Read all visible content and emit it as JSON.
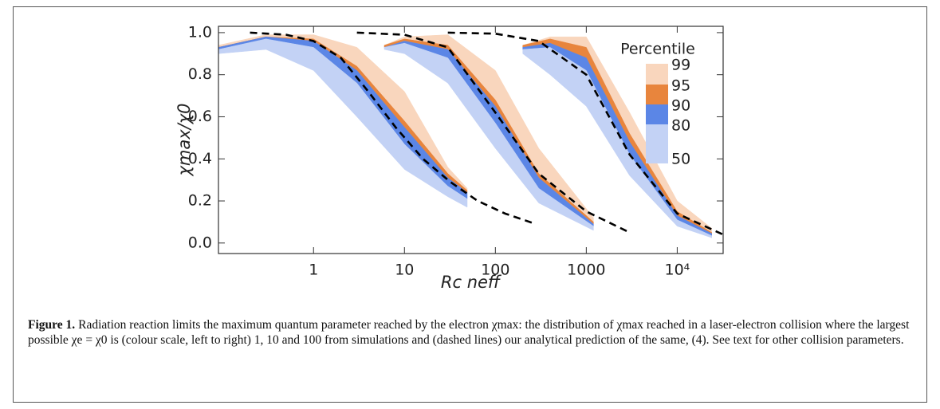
{
  "chart_data": {
    "type": "band",
    "xlabel": "Rc neff",
    "ylabel": "χmax/χ0",
    "xscale": "log",
    "xlim": [
      0.09,
      32000
    ],
    "ylim": [
      -0.05,
      1.03
    ],
    "xticks": [
      1,
      10,
      100,
      1000,
      {
        "value": 10000,
        "label": "10⁴"
      }
    ],
    "yticks": [
      {
        "value": 0,
        "label": "0.0"
      },
      {
        "value": 0.2,
        "label": "0.2"
      },
      {
        "value": 0.4,
        "label": "0.4"
      },
      {
        "value": 0.6,
        "label": "0.6"
      },
      {
        "value": 0.8,
        "label": "0.8"
      },
      {
        "value": 1,
        "label": "1.0"
      }
    ],
    "legend_title": "Percentile",
    "percentiles": [
      99,
      95,
      90,
      80,
      50
    ],
    "band_colors": [
      "#f9d6bd",
      "#e8853d",
      "#5b86e6",
      "#c3d2f5"
    ],
    "groups": [
      {
        "x": [
          0.09,
          0.3,
          1,
          3,
          10,
          30,
          49
        ],
        "levels": [
          [
            0.94,
            0.99,
            0.99,
            0.93,
            0.72,
            0.36,
            0.26
          ],
          [
            0.93,
            0.98,
            0.97,
            0.84,
            0.58,
            0.33,
            0.25
          ],
          [
            0.93,
            0.98,
            0.96,
            0.82,
            0.55,
            0.31,
            0.24
          ],
          [
            0.92,
            0.97,
            0.93,
            0.76,
            0.47,
            0.27,
            0.21
          ],
          [
            0.9,
            0.92,
            0.82,
            0.6,
            0.35,
            0.22,
            0.17
          ]
        ]
      },
      {
        "x": [
          6,
          10,
          30,
          100,
          300,
          1200
        ],
        "levels": [
          [
            0.94,
            0.98,
            0.99,
            0.82,
            0.45,
            0.12
          ],
          [
            0.94,
            0.97,
            0.94,
            0.68,
            0.33,
            0.1
          ],
          [
            0.93,
            0.96,
            0.92,
            0.65,
            0.31,
            0.09
          ],
          [
            0.93,
            0.95,
            0.88,
            0.57,
            0.26,
            0.08
          ],
          [
            0.92,
            0.9,
            0.76,
            0.45,
            0.19,
            0.06
          ]
        ]
      },
      {
        "x": [
          200,
          400,
          1000,
          3000,
          10000,
          24000
        ],
        "levels": [
          [
            0.94,
            0.98,
            0.98,
            0.62,
            0.2,
            0.07
          ],
          [
            0.94,
            0.97,
            0.93,
            0.52,
            0.15,
            0.05
          ],
          [
            0.93,
            0.95,
            0.88,
            0.48,
            0.13,
            0.045
          ],
          [
            0.92,
            0.93,
            0.82,
            0.42,
            0.11,
            0.035
          ],
          [
            0.9,
            0.8,
            0.65,
            0.32,
            0.08,
            0.025
          ]
        ]
      }
    ],
    "predictions": [
      {
        "x": [
          0.2,
          0.5,
          1,
          2,
          4,
          8,
          16,
          32,
          64,
          128,
          280
        ],
        "values": [
          1,
          0.99,
          0.96,
          0.88,
          0.72,
          0.55,
          0.4,
          0.29,
          0.2,
          0.14,
          0.09
        ]
      },
      {
        "x": [
          3,
          10,
          30,
          100,
          300,
          1000,
          3000
        ],
        "values": [
          1,
          0.99,
          0.93,
          0.62,
          0.33,
          0.15,
          0.05
        ]
      },
      {
        "x": [
          30,
          100,
          300,
          1000,
          3000,
          10000,
          32000
        ],
        "values": [
          1,
          0.995,
          0.96,
          0.8,
          0.42,
          0.14,
          0.04
        ]
      }
    ],
    "prediction_color": "#000000"
  },
  "caption": {
    "label": "Figure 1.",
    "text": "Radiation reaction limits the maximum quantum parameter reached by the electron χmax: the distribution of χmax reached in a laser-electron collision where the largest possible χe = χ0 is (colour scale, left to right) 1, 10 and 100 from simulations and (dashed lines) our analytical prediction of the same, (4). See text for other collision parameters."
  }
}
